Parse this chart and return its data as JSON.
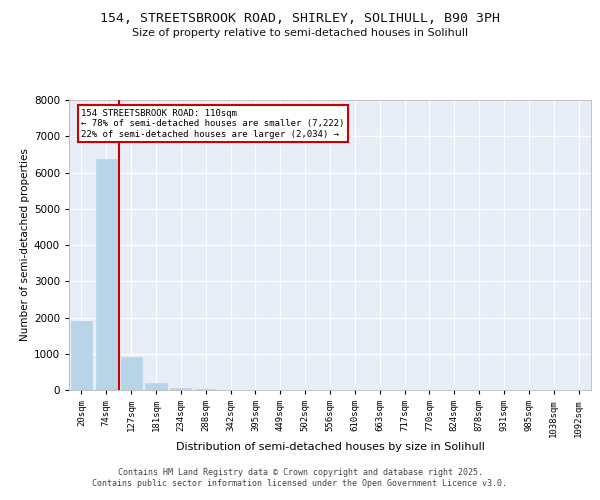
{
  "title": "154, STREETSBROOK ROAD, SHIRLEY, SOLIHULL, B90 3PH",
  "subtitle": "Size of property relative to semi-detached houses in Solihull",
  "xlabel": "Distribution of semi-detached houses by size in Solihull",
  "ylabel": "Number of semi-detached properties",
  "footer_line1": "Contains HM Land Registry data © Crown copyright and database right 2025.",
  "footer_line2": "Contains public sector information licensed under the Open Government Licence v3.0.",
  "annotation_line1": "154 STREETSBROOK ROAD: 110sqm",
  "annotation_line2": "← 78% of semi-detached houses are smaller (7,222)",
  "annotation_line3": "22% of semi-detached houses are larger (2,034) →",
  "red_line_color": "#cc0000",
  "bar_color": "#b8d4e8",
  "plot_bg_color": "#e8eef8",
  "grid_color": "#ffffff",
  "background_color": "#ffffff",
  "categories": [
    "20sqm",
    "74sqm",
    "127sqm",
    "181sqm",
    "234sqm",
    "288sqm",
    "342sqm",
    "395sqm",
    "449sqm",
    "502sqm",
    "556sqm",
    "610sqm",
    "663sqm",
    "717sqm",
    "770sqm",
    "824sqm",
    "878sqm",
    "931sqm",
    "985sqm",
    "1038sqm",
    "1092sqm"
  ],
  "values": [
    1900,
    6380,
    920,
    200,
    60,
    18,
    8,
    4,
    2,
    1,
    0,
    0,
    0,
    0,
    0,
    0,
    0,
    0,
    0,
    0,
    0
  ],
  "ylim": [
    0,
    8000
  ],
  "yticks": [
    0,
    1000,
    2000,
    3000,
    4000,
    5000,
    6000,
    7000,
    8000
  ],
  "red_line_between_bins": 1.5
}
